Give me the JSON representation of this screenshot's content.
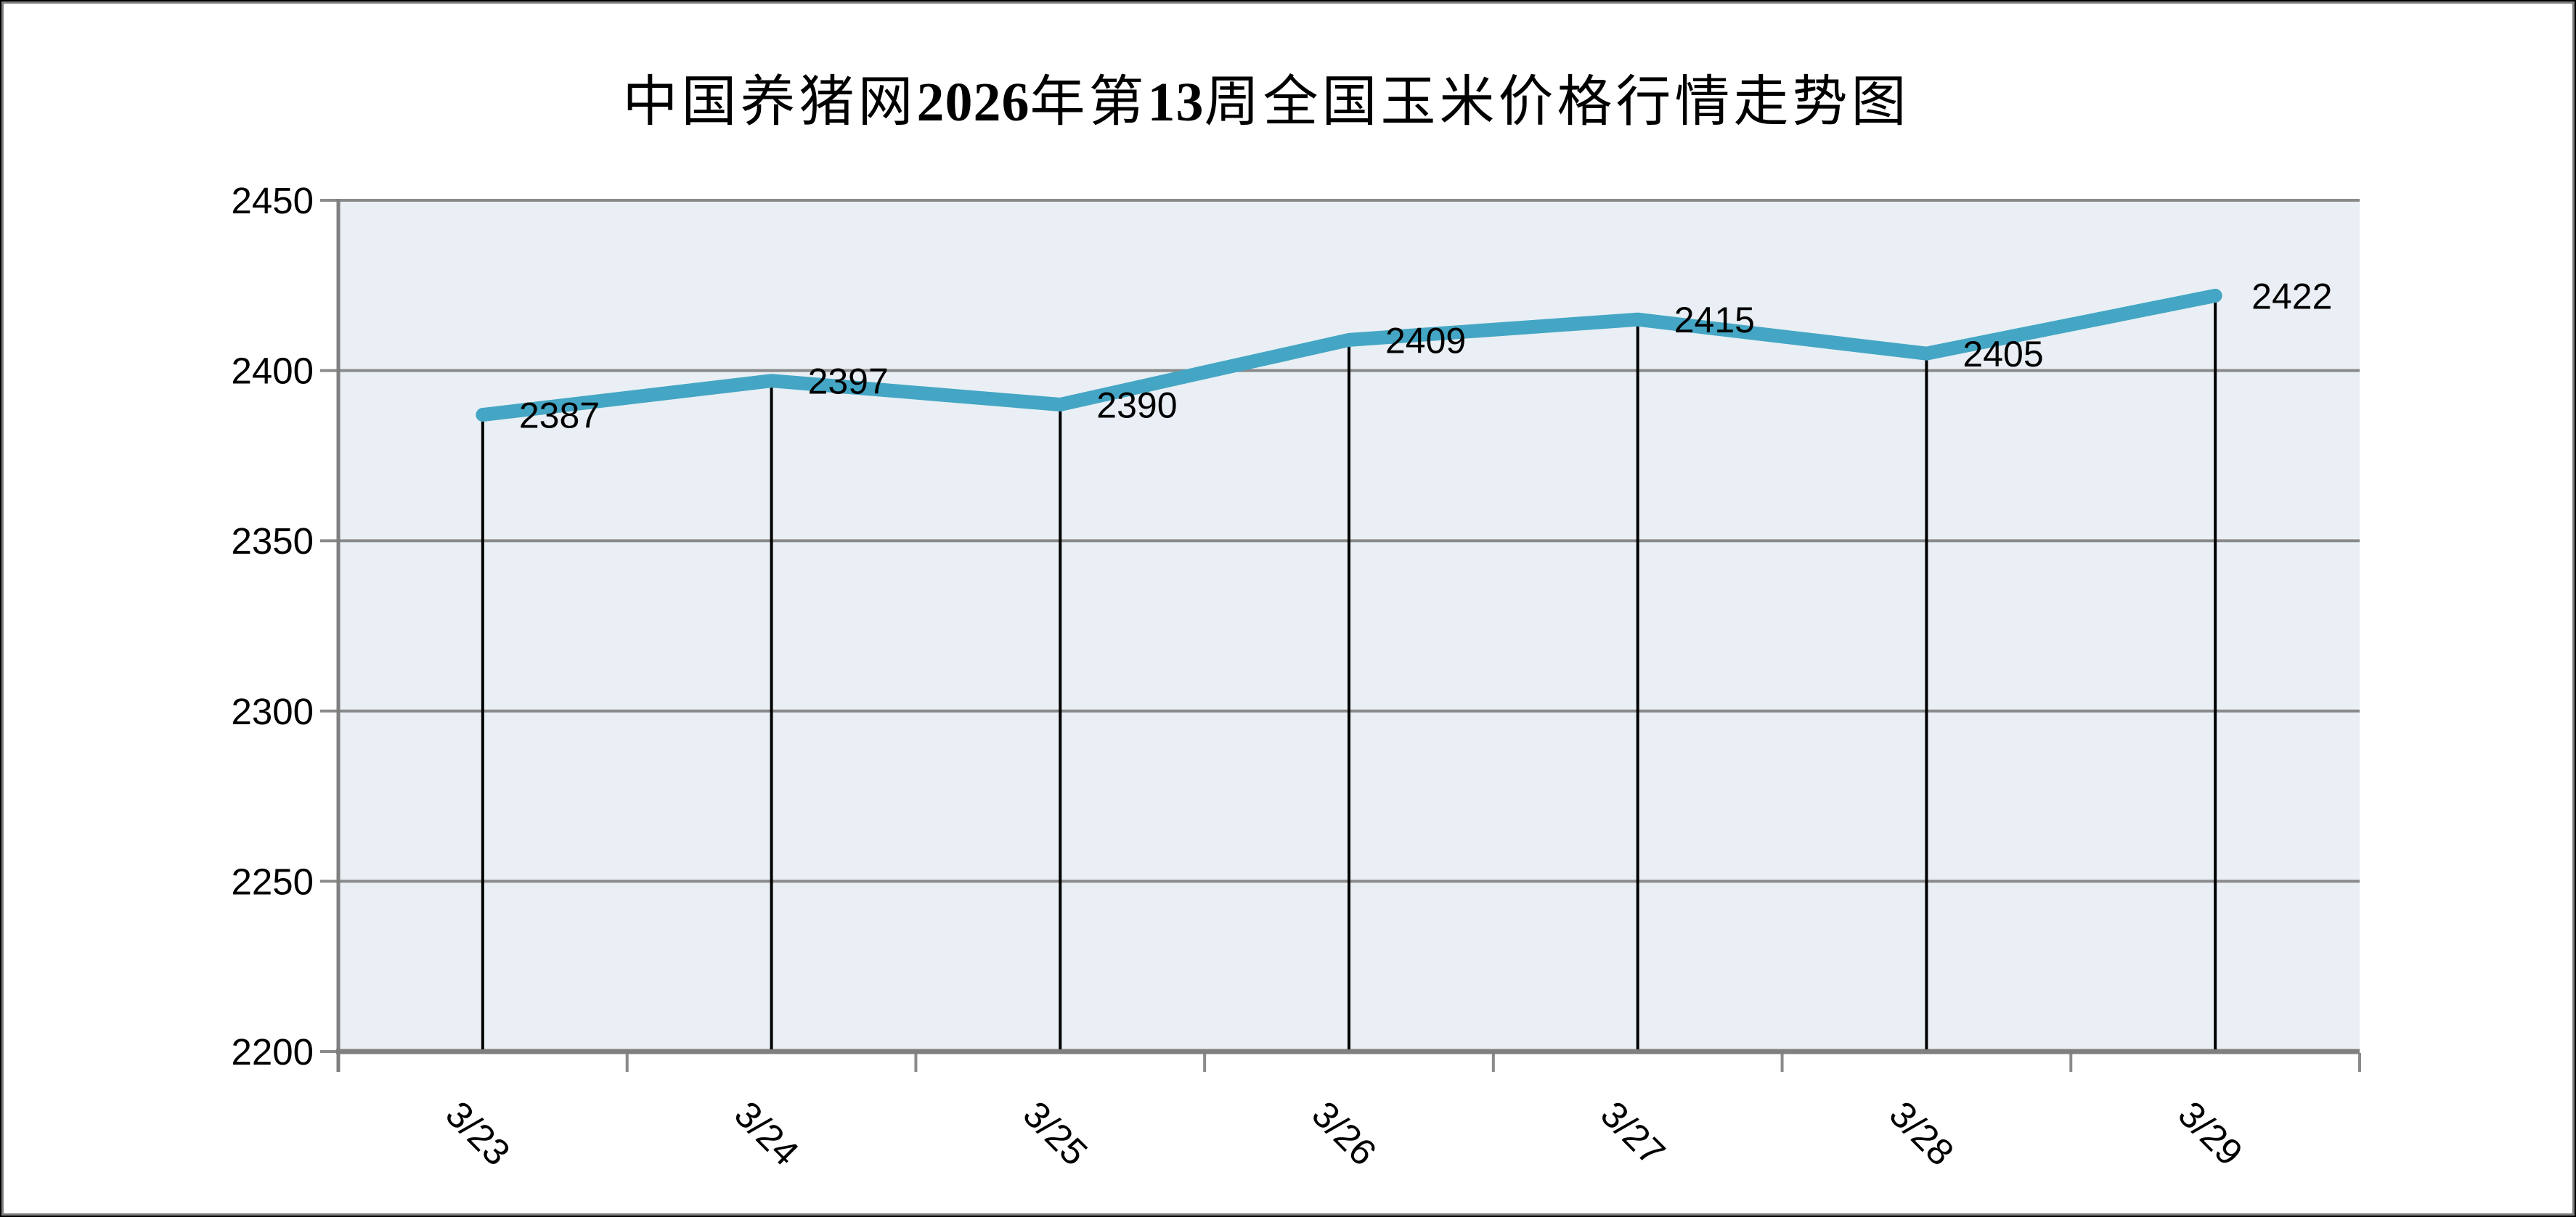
{
  "title": "中国养猪网2026年第13周全国玉米价格行情走势图",
  "chart_data": {
    "type": "line",
    "title": "中国养猪网2026年第13周全国玉米价格行情走势图",
    "categories": [
      "3/23",
      "3/24",
      "3/25",
      "3/26",
      "3/27",
      "3/28",
      "3/29"
    ],
    "values": [
      2387,
      2397,
      2390,
      2409,
      2415,
      2405,
      2422
    ],
    "xlabel": "",
    "ylabel": "",
    "ylim": [
      2200,
      2450
    ],
    "yticks": [
      2200,
      2250,
      2300,
      2350,
      2400,
      2450
    ],
    "grid": "horizontal",
    "legend": "none",
    "data_label_position": "right-of-point",
    "droplines": true,
    "x_label_rotation_deg": 45,
    "colors": {
      "line": "#44A6C4",
      "plot_bg": "#E9EFF4",
      "gridline": "#8A8A8A",
      "axis": "#7F7F7F",
      "dropline": "#000000",
      "text": "#000000",
      "frame_border": "#808080",
      "outer_edge": "#000000"
    }
  }
}
